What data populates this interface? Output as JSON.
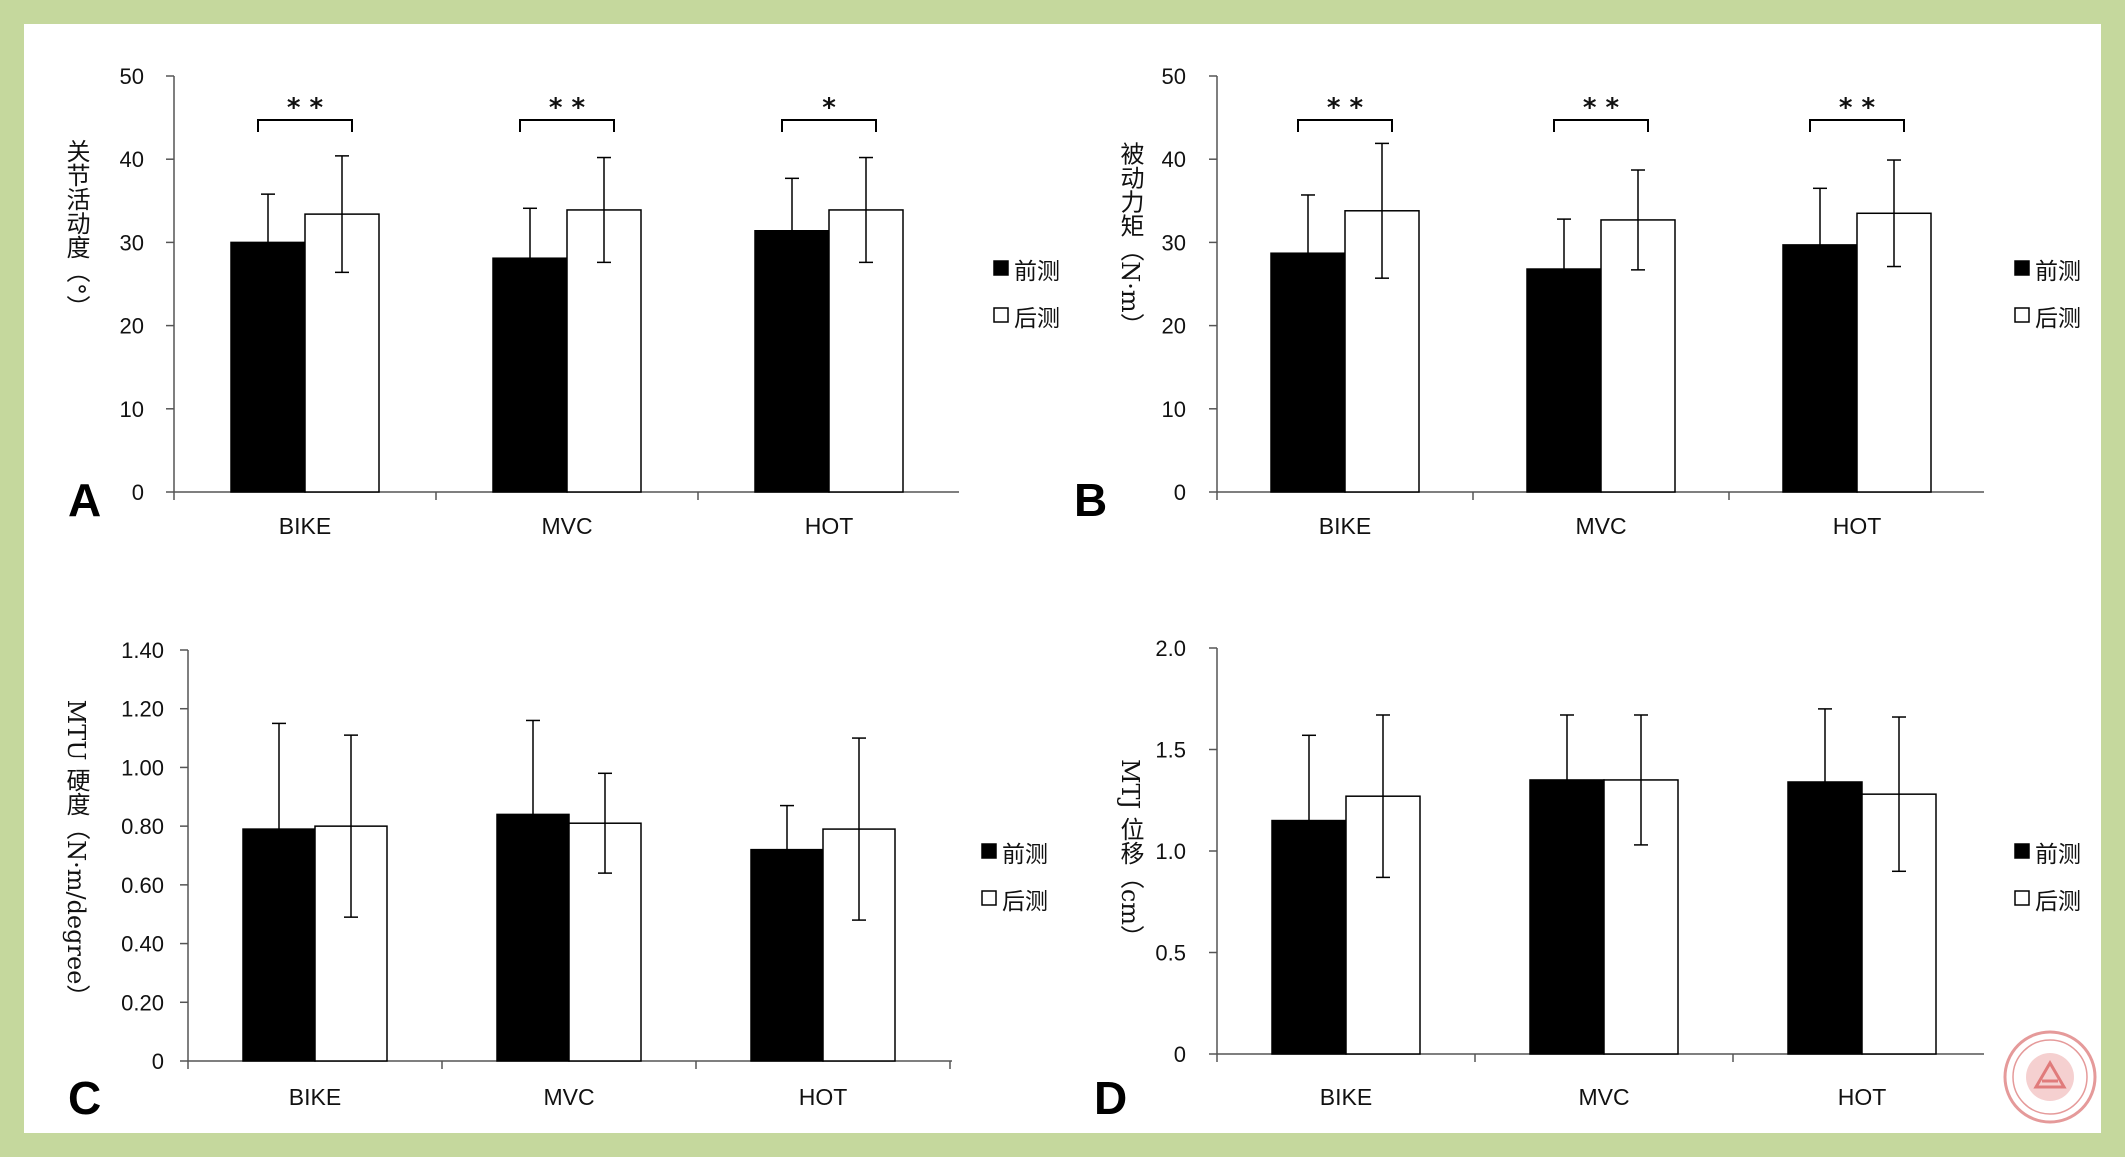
{
  "colors": {
    "background": "#c5d89d",
    "series_pre": "#000000",
    "series_post": "#ffffff",
    "seal": "#e07b7b"
  },
  "legend": [
    "前测",
    "后测"
  ],
  "seal": {
    "icon": "university-seal-icon"
  },
  "chart_data": [
    {
      "type": "bar",
      "panel": "A",
      "ylabel": "关节活动度（°）",
      "ylim": [
        0,
        50
      ],
      "yticks": [
        "0",
        "10",
        "20",
        "30",
        "40",
        "50"
      ],
      "categories": [
        "BIKE",
        "MVC",
        "HOT"
      ],
      "series": [
        {
          "name": "前测",
          "values": [
            30.0,
            28.1,
            31.4
          ],
          "errors": [
            5.8,
            6.0,
            6.3
          ]
        },
        {
          "name": "后测",
          "values": [
            33.4,
            33.9,
            33.9
          ],
          "errors": [
            7.0,
            6.3,
            6.3
          ]
        }
      ],
      "significance": [
        "* *",
        "* *",
        "*"
      ]
    },
    {
      "type": "bar",
      "panel": "B",
      "ylabel": "被动力矩（N·m）",
      "ylim": [
        0,
        50
      ],
      "yticks": [
        "0",
        "10",
        "20",
        "30",
        "40",
        "50"
      ],
      "categories": [
        "BIKE",
        "MVC",
        "HOT"
      ],
      "series": [
        {
          "name": "前测",
          "values": [
            28.7,
            26.8,
            29.7
          ],
          "errors": [
            7.0,
            6.0,
            6.8
          ]
        },
        {
          "name": "后测",
          "values": [
            33.8,
            32.7,
            33.5
          ],
          "errors": [
            8.1,
            6.0,
            6.4
          ]
        }
      ],
      "significance": [
        "* *",
        "* *",
        "* *"
      ]
    },
    {
      "type": "bar",
      "panel": "C",
      "ylabel": "MTU 硬度（N·m/degree）",
      "ylim": [
        0,
        1.4
      ],
      "yticks": [
        "0",
        "0.20",
        "0.40",
        "0.60",
        "0.80",
        "1.00",
        "1.20",
        "1.40"
      ],
      "categories": [
        "BIKE",
        "MVC",
        "HOT"
      ],
      "series": [
        {
          "name": "前测",
          "values": [
            0.79,
            0.84,
            0.72
          ],
          "errors": [
            0.36,
            0.32,
            0.15
          ]
        },
        {
          "name": "后测",
          "values": [
            0.8,
            0.81,
            0.79
          ],
          "errors": [
            0.31,
            0.17,
            0.31
          ]
        }
      ],
      "significance": []
    },
    {
      "type": "bar",
      "panel": "D",
      "ylabel": "MTJ 位移（cm）",
      "ylim": [
        0,
        2.0
      ],
      "yticks": [
        "0",
        "0.5",
        "1.0",
        "1.5",
        "2.0"
      ],
      "categories": [
        "BIKE",
        "MVC",
        "HOT"
      ],
      "series": [
        {
          "name": "前测",
          "values": [
            1.15,
            1.35,
            1.34
          ],
          "errors": [
            0.42,
            0.32,
            0.36
          ]
        },
        {
          "name": "后测",
          "values": [
            1.27,
            1.35,
            1.28
          ],
          "errors": [
            0.4,
            0.32,
            0.38
          ]
        }
      ],
      "significance": []
    }
  ]
}
